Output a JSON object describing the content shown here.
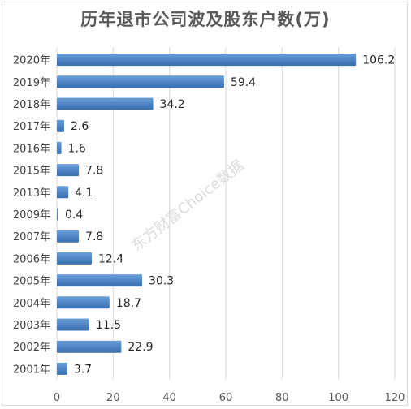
{
  "chart_data": {
    "type": "bar",
    "orientation": "horizontal",
    "title": "历年退市公司波及股东户数(万)",
    "watermark": "东方财富Choice数据",
    "categories": [
      "2020年",
      "2019年",
      "2018年",
      "2017年",
      "2016年",
      "2015年",
      "2013年",
      "2009年",
      "2007年",
      "2006年",
      "2005年",
      "2004年",
      "2003年",
      "2002年",
      "2001年"
    ],
    "values": [
      106.2,
      59.4,
      34.2,
      2.6,
      1.6,
      7.8,
      4.1,
      0.4,
      7.8,
      12.4,
      30.3,
      18.7,
      11.5,
      22.9,
      3.7
    ],
    "xlim": [
      0,
      120
    ],
    "xticks": [
      0,
      20,
      40,
      60,
      80,
      100,
      120
    ],
    "grid": true,
    "bar_color": "#4f86c6",
    "gridline_color": "#d9d9d9"
  }
}
